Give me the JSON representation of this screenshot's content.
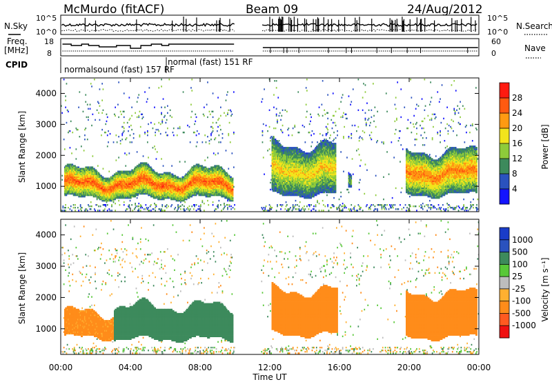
{
  "header": {
    "station": "McMurdo (fitACF)",
    "beam": "Beam 09",
    "date": "24/Aug/2012"
  },
  "top_panels": {
    "nsky_label": "N.Sky",
    "nsearch_label": "N.Search",
    "noise_left_ticks": [
      "10^5",
      "10^0"
    ],
    "noise_right_ticks": [
      "10^5",
      "10^0"
    ],
    "freq_label": "Freq.",
    "freq_unit": "[MHz]",
    "freq_ticks": [
      "18",
      "8"
    ],
    "nave_label": "Nave",
    "nave_ticks": [
      "60",
      "0"
    ],
    "cpid_label": "CPID",
    "cpid_entries": [
      "normalsound (fast) 157 RF",
      "normal (fast) 151 RF"
    ]
  },
  "colors": {
    "power_scale": [
      "#1414ff",
      "#2a52be",
      "#3d8a5c",
      "#8ecb3a",
      "#f2e41c",
      "#ff9a12",
      "#ff5a10",
      "#ff1a10"
    ],
    "velocity_scale": [
      "#f01010",
      "#ff5a20",
      "#ff8c1a",
      "#ffb030",
      "#bdbdbd",
      "#58c838",
      "#3d8a5c",
      "#2a52be",
      "#1a3cc8"
    ]
  },
  "chart_data": [
    {
      "type": "heatmap",
      "title": "Power",
      "ylabel": "Slant Range [km]",
      "xlabel": "Time UT",
      "ylim": [
        180,
        4500
      ],
      "yticks": [
        "1000",
        "2000",
        "3000",
        "4000"
      ],
      "xticks": [
        "00:00",
        "04:00",
        "08:00",
        "12:00",
        "16:00",
        "20:00",
        "00:00"
      ],
      "colorbar_label": "Power [dB]",
      "colorbar_ticks": [
        "4",
        "8",
        "12",
        "16",
        "20",
        "24",
        "28"
      ],
      "data_gap_hours": [
        10.0,
        11.5
      ],
      "regions": [
        {
          "t": [
            0.2,
            9.9
          ],
          "r": [
            600,
            1500
          ],
          "level_db": 24
        },
        {
          "t": [
            12.1,
            15.8
          ],
          "r": [
            700,
            2300
          ],
          "level_db": 18
        },
        {
          "t": [
            16.5,
            16.7
          ],
          "r": [
            900,
            1300
          ],
          "level_db": 12
        },
        {
          "t": [
            19.8,
            23.9
          ],
          "r": [
            700,
            2100
          ],
          "level_db": 22
        }
      ]
    },
    {
      "type": "heatmap",
      "ylabel": "Slant Range [km]",
      "xlabel": "Time UT",
      "ylim": [
        180,
        4500
      ],
      "yticks": [
        "1000",
        "2000",
        "3000",
        "4000"
      ],
      "xticks": [
        "00:00",
        "04:00",
        "08:00",
        "12:00",
        "16:00",
        "20:00",
        "00:00"
      ],
      "colorbar_label": "Velocity [m s⁻¹]",
      "colorbar_ticks": [
        "-1000",
        "-500",
        "-100",
        "-25",
        "25",
        "100",
        "500",
        "1000"
      ],
      "data_gap_hours": [
        10.0,
        11.5
      ],
      "regions": [
        {
          "t": [
            0.2,
            3.0
          ],
          "r": [
            700,
            1500
          ],
          "velocity": -150
        },
        {
          "t": [
            3.0,
            9.9
          ],
          "r": [
            650,
            1700
          ],
          "velocity": 300
        },
        {
          "t": [
            12.1,
            15.9
          ],
          "r": [
            800,
            2200
          ],
          "velocity": -200
        },
        {
          "t": [
            19.8,
            23.9
          ],
          "r": [
            700,
            2100
          ],
          "velocity": -200
        }
      ]
    }
  ]
}
